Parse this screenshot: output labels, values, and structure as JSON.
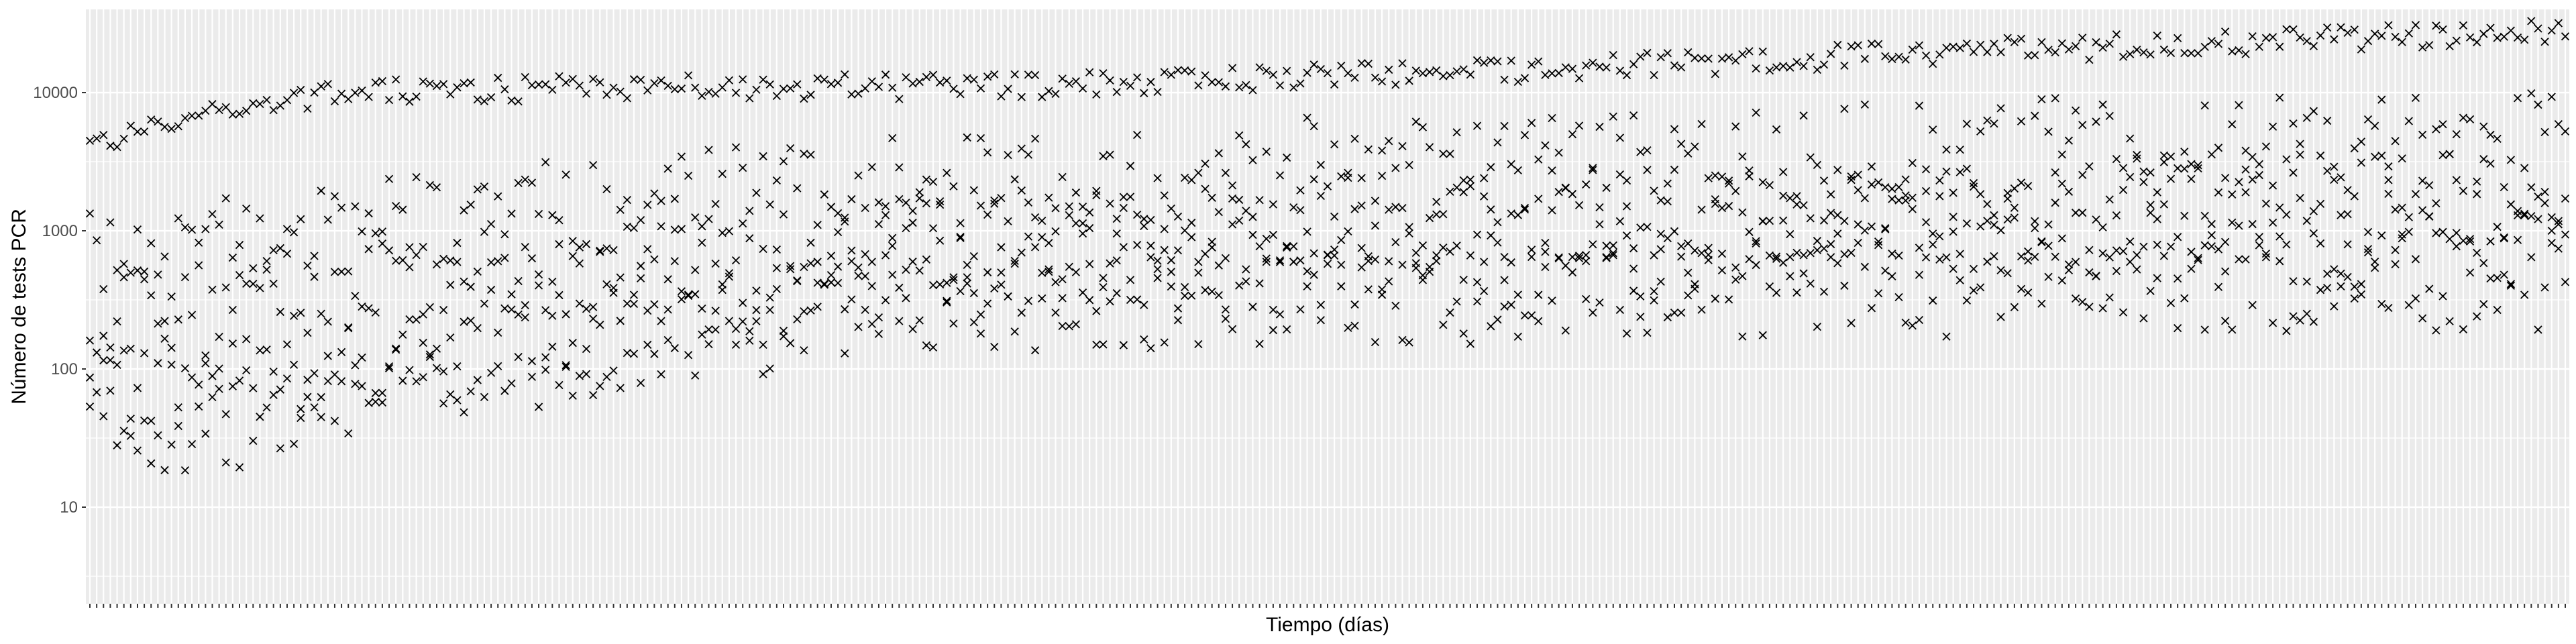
{
  "chart_data": {
    "type": "scatter",
    "xlabel": "Tiempo (días)",
    "ylabel": "Número de tests PCR",
    "y_scale": "log10",
    "ylim": [
      2,
      40000
    ],
    "x_tick_count": 365,
    "x_tick_labels_shown": false,
    "y_ticks": [
      10,
      100,
      1000,
      10000
    ],
    "y_tick_labels": [
      "10",
      "100",
      "1000",
      "10000"
    ],
    "marker": "x",
    "marker_color": "#000000",
    "panel_background": "#ebebeb",
    "gridline_color": "#ffffff",
    "grid": true,
    "legend": "none",
    "series": [
      {
        "trend_start_by_x": [
          [
            1,
            4200
          ],
          [
            20,
            7500
          ],
          [
            40,
            10000
          ],
          [
            80,
            11000
          ],
          [
            130,
            11000
          ],
          [
            200,
            14000
          ],
          [
            280,
            20000
          ],
          [
            365,
            28000
          ]
        ],
        "group_medians": [
          [
            [
              1,
              220
            ],
            [
              30,
              320
            ],
            [
              60,
              450
            ],
            [
              100,
              700
            ],
            [
              150,
              1000
            ],
            [
              220,
              1300
            ],
            [
              300,
              1600
            ],
            [
              365,
              1800
            ]
          ],
          [
            [
              1,
              70
            ],
            [
              20,
              90
            ],
            [
              50,
              160
            ],
            [
              90,
              300
            ],
            [
              140,
              500
            ],
            [
              220,
              700
            ],
            [
              300,
              850
            ],
            [
              365,
              900
            ]
          ],
          [
            [
              1,
              600
            ],
            [
              30,
              1000
            ],
            [
              60,
              1300
            ],
            [
              100,
              2000
            ],
            [
              150,
              2600
            ],
            [
              220,
              3500
            ],
            [
              300,
              4200
            ],
            [
              365,
              4600
            ]
          ],
          [
            [
              1,
              40
            ],
            [
              20,
              40
            ],
            [
              50,
              80
            ],
            [
              90,
              180
            ],
            [
              140,
              300
            ],
            [
              220,
              350
            ],
            [
              300,
              400
            ],
            [
              365,
              420
            ]
          ]
        ]
      }
    ]
  }
}
